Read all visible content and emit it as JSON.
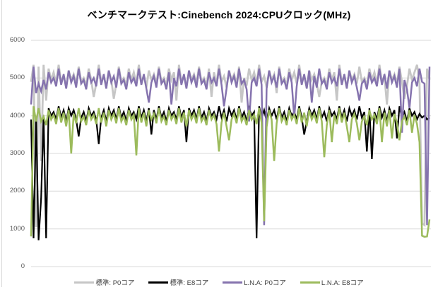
{
  "title": "ベンチマークテスト:Cinebench 2024:CPUクロック(MHz)",
  "colors": {
    "background": "#ffffff",
    "gridline": "#d9d9d9",
    "axis_label": "#595959",
    "legend_text": "#404040",
    "title_text": "#000000",
    "series_gray": "#c6c6c6",
    "series_black": "#000000",
    "series_purple": "#8573ae",
    "series_green": "#9cbb5c"
  },
  "axis": {
    "y_ticks": [
      6000,
      5000,
      4000,
      3000,
      2000,
      1000,
      0
    ]
  },
  "legend": [
    {
      "key": "std-p0",
      "label": "標準: P0コア",
      "color": "#c6c6c6"
    },
    {
      "key": "std-e8",
      "label": "標準: E8コア",
      "color": "#000000"
    },
    {
      "key": "lna-p0",
      "label": "L.N.A: P0コア",
      "color": "#8573ae"
    },
    {
      "key": "lna-e8",
      "label": "L.N.A: E8コア",
      "color": "#9cbb5c"
    }
  ],
  "chart_data": {
    "type": "line",
    "title": "ベンチマークテスト:Cinebench 2024:CPUクロック(MHz)",
    "xlabel": "",
    "ylabel": "CPUクロック (MHz)",
    "ylim": [
      0,
      6000
    ],
    "y_tick_interval": 1000,
    "grid": true,
    "legend_position": "bottom",
    "x_axis": {
      "labels_visible": false,
      "samples": 160,
      "meaning": "time during benchmark run"
    },
    "series": [
      {
        "key": "std-p0",
        "name": "標準: P0コア",
        "color": "#c6c6c6",
        "values": [
          4900,
          5350,
          1050,
          5300,
          2800,
          5350,
          4400,
          5250,
          4950,
          5150,
          4850,
          5350,
          4900,
          5050,
          4750,
          5200,
          4950,
          5100,
          4850,
          5300,
          4900,
          5000,
          4800,
          5250,
          4950,
          4500,
          4850,
          5350,
          4900,
          5050,
          4750,
          5200,
          4950,
          4450,
          4850,
          5300,
          4900,
          5000,
          4800,
          5250,
          4950,
          5150,
          4850,
          5350,
          4900,
          5050,
          4750,
          5200,
          4950,
          5100,
          4850,
          5300,
          4900,
          5000,
          4800,
          5250,
          4950,
          5150,
          4400,
          5350,
          4900,
          5050,
          4750,
          5200,
          4950,
          5100,
          4850,
          5300,
          4900,
          5000,
          4800,
          5250,
          4500,
          5150,
          4850,
          5350,
          4900,
          5050,
          4750,
          5200,
          4950,
          5100,
          4850,
          5300,
          4350,
          5000,
          4800,
          5250,
          4950,
          5150,
          4850,
          5350,
          4900,
          5050,
          4750,
          5200,
          4950,
          5100,
          4600,
          5300,
          4900,
          5000,
          4800,
          5250,
          4950,
          5150,
          4850,
          5350,
          4900,
          5050,
          4750,
          5200,
          4950,
          5100,
          4850,
          4500,
          4900,
          5000,
          4800,
          5250,
          4950,
          5150,
          4400,
          5350,
          4900,
          5050,
          4750,
          5200,
          4950,
          5100,
          4850,
          5300,
          4900,
          5000,
          4800,
          5250,
          4950,
          5150,
          4850,
          5350,
          4900,
          5050,
          4300,
          5200,
          4950,
          5100,
          4850,
          5300,
          4900,
          4450,
          4800,
          5250,
          4950,
          5150,
          5350,
          4900,
          1150,
          1100,
          5250,
          4950
        ]
      },
      {
        "key": "std-e8",
        "name": "標準: E8コア",
        "color": "#000000",
        "values": [
          3900,
          750,
          3950,
          700,
          1800,
          4000,
          750,
          4200,
          4000,
          4100,
          3900,
          4250,
          3950,
          4150,
          3850,
          4200,
          4000,
          4150,
          3900,
          3450,
          3950,
          4100,
          3850,
          4200,
          4000,
          4100,
          3900,
          3250,
          3950,
          4150,
          3850,
          4200,
          4000,
          4150,
          3900,
          4250,
          3950,
          4100,
          3850,
          4200,
          4000,
          4100,
          3900,
          4250,
          3950,
          4150,
          3850,
          4200,
          3500,
          4150,
          3900,
          4250,
          3950,
          4100,
          3850,
          4200,
          4000,
          4100,
          3900,
          4250,
          3950,
          4150,
          3300,
          4200,
          4000,
          4150,
          3900,
          4250,
          3950,
          4100,
          3850,
          4200,
          4000,
          4100,
          3900,
          4250,
          3950,
          4150,
          3850,
          4200,
          4000,
          4150,
          3900,
          4250,
          3950,
          4100,
          3850,
          4200,
          4000,
          4100,
          750,
          4250,
          3950,
          4150,
          3850,
          4200,
          4000,
          4150,
          3900,
          4250,
          3950,
          4100,
          3850,
          4200,
          4000,
          4100,
          3900,
          4250,
          3950,
          3500,
          3850,
          4200,
          4000,
          4150,
          3900,
          4250,
          3950,
          4100,
          3850,
          4200,
          4000,
          4100,
          3900,
          4250,
          3950,
          4150,
          3850,
          4200,
          4000,
          4150,
          3900,
          4250,
          3950,
          4100,
          3050,
          4200,
          2850,
          4100,
          3900,
          4250,
          3950,
          4150,
          3850,
          4200,
          4000,
          4150,
          3400,
          4250,
          3950,
          4100,
          3850,
          4200,
          4000,
          4100,
          3900,
          4050,
          3950,
          4000,
          3900,
          3950
        ]
      },
      {
        "key": "lna-p0",
        "name": "L.N.A: P0コア",
        "color": "#8573ae",
        "values": [
          4300,
          5300,
          4600,
          4850,
          4650,
          4950,
          4700,
          5150,
          4880,
          5000,
          4780,
          5250,
          4820,
          5100,
          4720,
          5200,
          4880,
          5050,
          4750,
          5250,
          4850,
          4950,
          4700,
          5150,
          4880,
          5000,
          4780,
          5250,
          4820,
          5100,
          4720,
          5200,
          4880,
          5050,
          4750,
          5250,
          4850,
          4950,
          4700,
          5150,
          4880,
          5000,
          4780,
          5250,
          4820,
          5100,
          4720,
          4350,
          4880,
          5050,
          4750,
          5250,
          4850,
          4950,
          4700,
          5150,
          4300,
          5000,
          4780,
          5250,
          4820,
          5100,
          4720,
          5200,
          4880,
          5050,
          4750,
          5250,
          4850,
          4950,
          4700,
          5150,
          4880,
          5000,
          4780,
          5250,
          4820,
          4250,
          4720,
          5200,
          4880,
          5050,
          4750,
          5250,
          4850,
          4950,
          4700,
          3850,
          4880,
          5000,
          4780,
          5250,
          4820,
          1100,
          4720,
          5200,
          4880,
          5050,
          4750,
          5250,
          4850,
          4950,
          4700,
          5150,
          4880,
          3950,
          4780,
          5250,
          4820,
          5100,
          4720,
          5200,
          4350,
          5050,
          4750,
          5250,
          4850,
          4950,
          4700,
          5150,
          4880,
          5000,
          4780,
          5250,
          4820,
          5100,
          4720,
          5200,
          4880,
          5050,
          4750,
          4400,
          4850,
          4950,
          4700,
          5150,
          4880,
          5000,
          4780,
          5250,
          4820,
          5100,
          4720,
          5200,
          4880,
          5050,
          4750,
          5250,
          3550,
          4950,
          4700,
          4200,
          4880,
          5000,
          4780,
          5250,
          4900,
          4850,
          1100,
          5300
        ]
      },
      {
        "key": "lna-e8",
        "name": "L.N.A: E8コア",
        "color": "#9cbb5c",
        "values": [
          800,
          4250,
          3850,
          4200,
          3850,
          3980,
          3750,
          4150,
          3900,
          4020,
          3780,
          4200,
          3820,
          4080,
          3720,
          4150,
          3000,
          4050,
          3800,
          4200,
          3850,
          3980,
          3750,
          4150,
          3900,
          4020,
          3780,
          4200,
          3820,
          4080,
          3720,
          4150,
          3900,
          4050,
          3800,
          4200,
          3850,
          3980,
          3750,
          4150,
          3900,
          4020,
          2950,
          4200,
          3820,
          4080,
          3720,
          4150,
          3900,
          4050,
          3800,
          4200,
          3850,
          3980,
          3750,
          4150,
          3900,
          4020,
          3780,
          4200,
          3820,
          4080,
          3720,
          4150,
          3900,
          4050,
          3800,
          4200,
          3850,
          3980,
          3750,
          4150,
          3900,
          4020,
          3780,
          3050,
          3820,
          4080,
          3720,
          3350,
          3900,
          4050,
          3800,
          4200,
          3850,
          3980,
          3750,
          4150,
          3900,
          4020,
          3780,
          4200,
          3820,
          1200,
          3700,
          4150,
          3900,
          2800,
          3800,
          4200,
          3850,
          3980,
          3750,
          4150,
          3900,
          4020,
          3780,
          4200,
          3820,
          4080,
          3720,
          4150,
          3900,
          4050,
          3800,
          4200,
          3850,
          2900,
          3750,
          4150,
          3300,
          4020,
          3780,
          4200,
          3820,
          4080,
          3720,
          3300,
          3900,
          4050,
          3800,
          3350,
          3850,
          3980,
          3750,
          4150,
          3900,
          4020,
          3780,
          4200,
          3300,
          4080,
          3720,
          4150,
          3400,
          4050,
          3800,
          3350,
          3850,
          3980,
          3750,
          4150,
          3550,
          4020,
          3780,
          3300,
          820,
          790,
          800,
          1250
        ]
      }
    ]
  }
}
